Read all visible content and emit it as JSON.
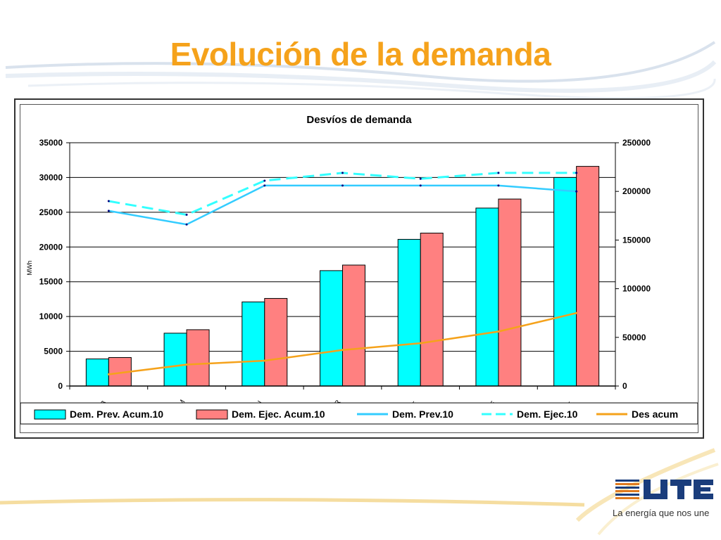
{
  "slide": {
    "title": "Evolución de la demanda"
  },
  "logo": {
    "text": "UTE",
    "tagline": "La energía que nos une"
  },
  "colors": {
    "title": "#f5a21b",
    "prev_acum": "#00ffff",
    "ejec_acum": "#ff8080",
    "prev_line": "#33ccff",
    "ejec_line": "#33ffff",
    "des_acum": "#f5a21b"
  },
  "chart_data": {
    "type": "bar",
    "title": "Desvíos de demanda",
    "ylabel": "MWh",
    "xlabel": "",
    "categories": [
      "SAB",
      "DOM",
      "LUN",
      "MAR",
      "MIE",
      "JUE",
      "VIE"
    ],
    "ylim": [
      0,
      35000
    ],
    "y_ticks": [
      "0",
      "5000",
      "10000",
      "15000",
      "20000",
      "25000",
      "30000",
      "35000"
    ],
    "y2lim": [
      0,
      250000
    ],
    "y2_ticks": [
      "0",
      "50000",
      "100000",
      "150000",
      "200000",
      "250000"
    ],
    "grid": true,
    "legend_position": "bottom",
    "series": [
      {
        "name": "Dem. Prev. Acum.10",
        "type": "bar",
        "axis": "left",
        "values": [
          3900,
          7600,
          12100,
          16600,
          21100,
          25600,
          30000
        ]
      },
      {
        "name": "Dem. Ejec. Acum.10",
        "type": "bar",
        "axis": "left",
        "values": [
          4100,
          8100,
          12600,
          17400,
          22000,
          26900,
          31600
        ]
      },
      {
        "name": "Dem. Prev.10",
        "type": "line",
        "axis": "right",
        "values": [
          180000,
          166000,
          206000,
          206000,
          206000,
          206000,
          200000
        ]
      },
      {
        "name": "Dem. Ejec.10",
        "type": "line-dashed",
        "axis": "right",
        "values": [
          190000,
          176000,
          211000,
          219000,
          213000,
          219000,
          219000
        ]
      },
      {
        "name": "Des acum",
        "type": "line",
        "axis": "right",
        "values": [
          12000,
          22000,
          26000,
          37000,
          44000,
          56000,
          75000
        ]
      }
    ]
  }
}
